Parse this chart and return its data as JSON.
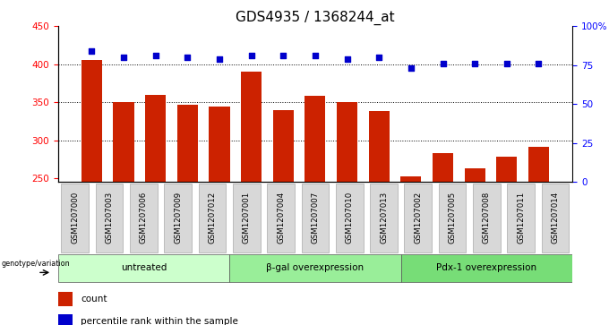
{
  "title": "GDS4935 / 1368244_at",
  "samples": [
    "GSM1207000",
    "GSM1207003",
    "GSM1207006",
    "GSM1207009",
    "GSM1207012",
    "GSM1207001",
    "GSM1207004",
    "GSM1207007",
    "GSM1207010",
    "GSM1207013",
    "GSM1207002",
    "GSM1207005",
    "GSM1207008",
    "GSM1207011",
    "GSM1207014"
  ],
  "counts": [
    405,
    350,
    360,
    347,
    344,
    390,
    340,
    358,
    350,
    338,
    252,
    283,
    263,
    278,
    291
  ],
  "percentiles": [
    84,
    80,
    81,
    80,
    79,
    81,
    81,
    81,
    79,
    80,
    73,
    76,
    76,
    76,
    76
  ],
  "groups": [
    {
      "label": "untreated",
      "start": 0,
      "end": 5,
      "color": "#ccffcc"
    },
    {
      "label": "β-gal overexpression",
      "start": 5,
      "end": 10,
      "color": "#99ee99"
    },
    {
      "label": "Pdx-1 overexpression",
      "start": 10,
      "end": 15,
      "color": "#77dd77"
    }
  ],
  "bar_color": "#cc2200",
  "scatter_color": "#0000cc",
  "ylim_left": [
    245,
    450
  ],
  "ylim_right": [
    0,
    100
  ],
  "yticks_left": [
    250,
    300,
    350,
    400,
    450
  ],
  "yticks_right": [
    0,
    25,
    50,
    75,
    100
  ],
  "yticklabels_right": [
    "0",
    "25",
    "50",
    "75",
    "100%"
  ],
  "bg_color": "#d8d8d8",
  "grid_color": "black",
  "title_fontsize": 11,
  "label_fontsize": 7.5,
  "tick_fontsize": 7.5
}
